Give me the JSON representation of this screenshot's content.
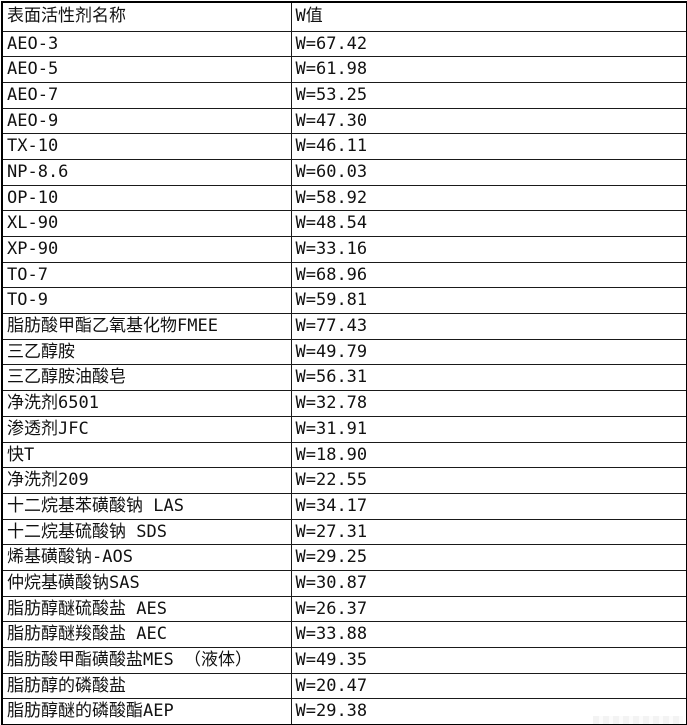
{
  "table": {
    "headers": [
      {
        "label": "表面活性剂名称"
      },
      {
        "label": "W值"
      }
    ],
    "rows": [
      {
        "name": "AEO-3",
        "value": "W=67.42"
      },
      {
        "name": "AEO-5",
        "value": "W=61.98"
      },
      {
        "name": "AEO-7",
        "value": "W=53.25"
      },
      {
        "name": "AEO-9",
        "value": "W=47.30"
      },
      {
        "name": "TX-10",
        "value": "W=46.11"
      },
      {
        "name": "NP-8.6",
        "value": "W=60.03"
      },
      {
        "name": "OP-10",
        "value": "W=58.92"
      },
      {
        "name": "XL-90",
        "value": "W=48.54"
      },
      {
        "name": "XP-90",
        "value": "W=33.16"
      },
      {
        "name": "TO-7",
        "value": "W=68.96"
      },
      {
        "name": "TO-9",
        "value": "W=59.81"
      },
      {
        "name": "脂肪酸甲酯乙氧基化物FMEE",
        "value": "W=77.43"
      },
      {
        "name": "三乙醇胺",
        "value": "W=49.79"
      },
      {
        "name": "三乙醇胺油酸皂",
        "value": "W=56.31"
      },
      {
        "name": "净洗剂6501",
        "value": "W=32.78"
      },
      {
        "name": "渗透剂JFC",
        "value": "W=31.91"
      },
      {
        "name": "快T",
        "value": "W=18.90"
      },
      {
        "name": "净洗剂209",
        "value": "W=22.55"
      },
      {
        "name": "十二烷基苯磺酸钠 LAS",
        "value": "W=34.17"
      },
      {
        "name": "十二烷基硫酸钠 SDS",
        "value": "W=27.31"
      },
      {
        "name": "烯基磺酸钠-AOS",
        "value": "W=29.25"
      },
      {
        "name": "仲烷基磺酸钠SAS",
        "value": "W=30.87"
      },
      {
        "name": "脂肪醇醚硫酸盐 AES",
        "value": "W=26.37"
      },
      {
        "name": "脂肪醇醚羧酸盐 AEC",
        "value": "W=33.88"
      },
      {
        "name": "脂肪酸甲酯磺酸盐MES （液体）",
        "value": "W=49.35"
      },
      {
        "name": "脂肪醇的磷酸盐",
        "value": "W=20.47"
      },
      {
        "name": "脂肪醇醚的磷酸酯AEP",
        "value": "W=29.38"
      }
    ]
  }
}
